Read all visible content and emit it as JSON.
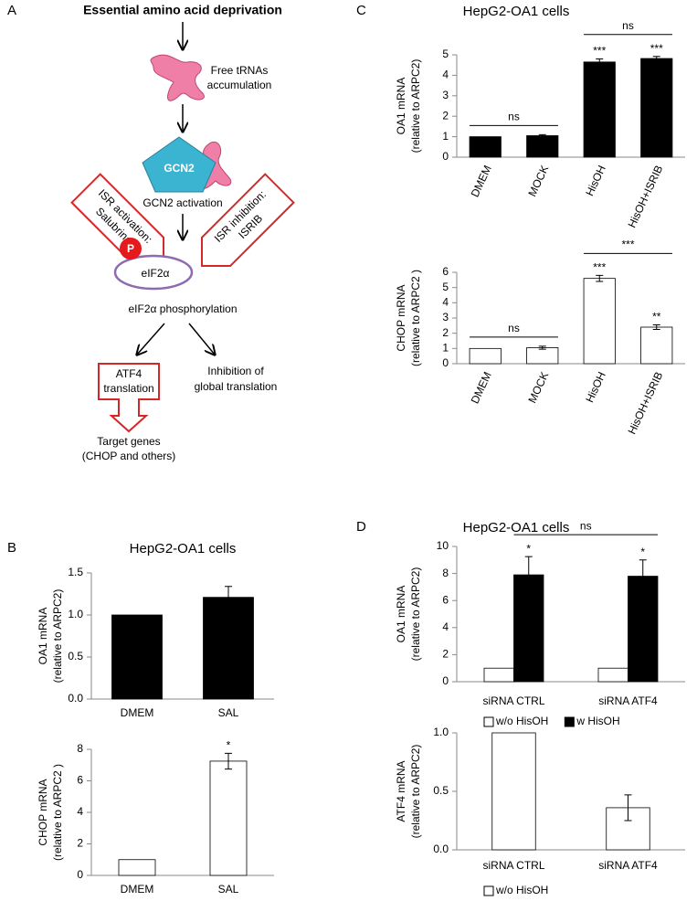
{
  "panels": [
    "A",
    "B",
    "C",
    "D"
  ],
  "diagram": {
    "title": "Essential amino acid deprivation",
    "free_trna": [
      "Free tRNAs",
      "accumulation"
    ],
    "gcn2": "GCN2",
    "gcn2_activation": "GCN2 activation",
    "isr_activation": [
      "ISR activation:",
      "Salubrinal"
    ],
    "isr_inhibition": [
      "ISR inhibition:",
      "ISRIB"
    ],
    "p": "P",
    "eif2a": "eIF2α",
    "phosphorylation": "eIF2α phosphorylation",
    "atf4": [
      "ATF4",
      "translation"
    ],
    "inhibition": [
      "Inhibition of",
      "global translation"
    ],
    "target": [
      "Target genes",
      "(CHOP and others)"
    ]
  },
  "chart_data": [
    {
      "type": "bar",
      "title": "HepG2-OA1 cells",
      "y_label": [
        "OA1 mRNA",
        "(relative to ARPC2)"
      ],
      "categories": [
        "DMEM",
        "SAL"
      ],
      "series": [
        {
          "name": null,
          "color": "#000000",
          "values": [
            1.0,
            1.21
          ],
          "errors": [
            null,
            0.13
          ],
          "significance": [
            null,
            null
          ]
        }
      ],
      "ylim": [
        0,
        1.5
      ],
      "yticks": [
        {
          "value": 0,
          "label": "0.0"
        },
        0.5,
        {
          "value": 1,
          "label": "1.0"
        },
        1.5
      ],
      "legend": false
    },
    {
      "type": "bar",
      "y_label": [
        "CHOP mRNA",
        "(relative to ARPC2 )"
      ],
      "categories": [
        "DMEM",
        "SAL"
      ],
      "series": [
        {
          "name": null,
          "color": "#ffffff",
          "values": [
            1.0,
            7.25
          ],
          "errors": [
            null,
            0.5
          ],
          "significance": [
            null,
            "*"
          ]
        }
      ],
      "ylim": [
        0,
        8
      ],
      "yticks": [
        0,
        2,
        4,
        6,
        8
      ],
      "legend": false
    },
    {
      "type": "bar",
      "title": "HepG2-OA1 cells",
      "y_label": [
        "OA1 mRNA",
        "(relative to ARPC2)"
      ],
      "categories": [
        "DMEM",
        "MOCK",
        "HisOH",
        "HisOH+ISRIB"
      ],
      "series": [
        {
          "name": null,
          "color": "#000000",
          "values": [
            1.0,
            1.05,
            4.65,
            4.82
          ],
          "errors": [
            null,
            0.05,
            0.15,
            0.1
          ],
          "significance": [
            null,
            null,
            "***",
            "***"
          ]
        }
      ],
      "brackets": [
        {
          "label": "ns",
          "from": "DMEM",
          "to": "MOCK"
        },
        {
          "label": "ns",
          "from": "HisOH",
          "to": "HisOH+ISRIB"
        }
      ],
      "ylim": [
        0,
        5
      ],
      "yticks": [
        0,
        1,
        2,
        3,
        4,
        5
      ],
      "legend": false
    },
    {
      "type": "bar",
      "y_label": [
        "CHOP mRNA",
        "(relative to ARPC2 )"
      ],
      "categories": [
        "DMEM",
        "MOCK",
        "HisOH",
        "HisOH+ISRIB"
      ],
      "series": [
        {
          "name": null,
          "color": "#ffffff",
          "values": [
            1.0,
            1.05,
            5.6,
            2.4
          ],
          "errors": [
            null,
            0.1,
            0.2,
            0.15
          ],
          "significance": [
            null,
            null,
            "***",
            "**"
          ]
        }
      ],
      "brackets": [
        {
          "label": "ns",
          "from": "DMEM",
          "to": "MOCK"
        },
        {
          "label": "***",
          "from": "HisOH",
          "to": "HisOH+ISRIB"
        }
      ],
      "ylim": [
        0,
        6
      ],
      "yticks": [
        0,
        1,
        2,
        3,
        4,
        5,
        6
      ],
      "legend": false
    },
    {
      "type": "bar",
      "title": "HepG2-OA1 cells",
      "y_label": [
        "OA1 mRNA",
        "(relative to ARPC2)"
      ],
      "categories": [
        "siRNA CTRL",
        "siRNA ATF4"
      ],
      "series": [
        {
          "name": "w/o HisOH",
          "color": "#ffffff",
          "values": [
            1.0,
            1.0
          ],
          "errors": [
            null,
            null
          ],
          "significance": [
            null,
            null
          ]
        },
        {
          "name": "w HisOH",
          "color": "#000000",
          "values": [
            7.9,
            7.8
          ],
          "errors": [
            1.35,
            1.2
          ],
          "significance": [
            "*",
            "*"
          ]
        }
      ],
      "brackets": [
        {
          "label": "ns",
          "from": "siRNA CTRL",
          "to": "siRNA ATF4",
          "series": "w HisOH"
        }
      ],
      "ylim": [
        0,
        10
      ],
      "yticks": [
        0,
        2,
        4,
        6,
        8,
        10
      ],
      "legend": true
    },
    {
      "type": "bar",
      "y_label": [
        "ATF4 mRNA",
        "(relative to ARPC2)"
      ],
      "categories": [
        "siRNA CTRL",
        "siRNA ATF4"
      ],
      "series": [
        {
          "name": "w/o HisOH",
          "color": "#ffffff",
          "values": [
            1.0,
            0.36
          ],
          "errors": [
            null,
            0.11
          ],
          "significance": [
            null,
            null
          ]
        }
      ],
      "ylim": [
        0,
        1
      ],
      "yticks": [
        {
          "value": 0,
          "label": "0.0"
        },
        0.5,
        {
          "value": 1,
          "label": "1.0"
        }
      ],
      "legend": true
    }
  ]
}
